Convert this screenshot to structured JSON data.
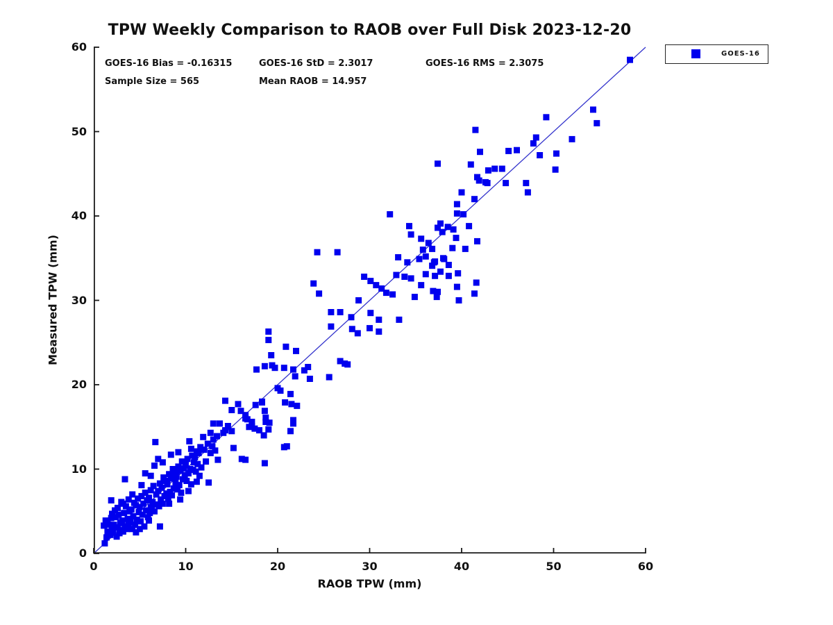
{
  "figure": {
    "title": "TPW Weekly Comparison to RAOB over Full Disk 2023-12-20",
    "stats": {
      "bias": "GOES-16 Bias = -0.16315",
      "std": "GOES-16 StD = 2.3017",
      "rms": "GOES-16 RMS = 2.3075",
      "sample_size": "Sample Size = 565",
      "mean_raob": "Mean RAOB = 14.957"
    },
    "legend": {
      "label": "GOES-16",
      "marker_color": "#0000EE"
    },
    "colors": {
      "marker": "#0000EE",
      "reference_line": "#3333CC",
      "axis": "#1a1a1a",
      "text": "#111111"
    }
  },
  "chart_data": {
    "type": "scatter",
    "title": "TPW Weekly Comparison to RAOB over Full Disk 2023-12-20",
    "xlabel": "RAOB TPW (mm)",
    "ylabel": "Measured TPW (mm)",
    "xlim": [
      0,
      60
    ],
    "ylim": [
      0,
      60
    ],
    "xticks": [
      0,
      10,
      20,
      30,
      40,
      50,
      60
    ],
    "yticks": [
      0,
      10,
      20,
      30,
      40,
      50,
      60
    ],
    "grid": false,
    "legend_position": "outside-top-right",
    "annotations": [
      "GOES-16 Bias = -0.16315",
      "GOES-16 StD = 2.3017",
      "GOES-16 RMS = 2.3075",
      "Sample Size = 565",
      "Mean RAOB = 14.957"
    ],
    "sample_size": 565,
    "reference_line": {
      "type": "identity",
      "x": [
        0,
        60
      ],
      "y": [
        0,
        60
      ],
      "color": "#3333CC"
    },
    "series": [
      {
        "name": "GOES-16",
        "marker": "filled-square",
        "marker_size_px": 9,
        "color": "#0000EE",
        "points": [
          [
            1.2,
            1.2
          ],
          [
            1.3,
            3.9
          ],
          [
            1.5,
            3.8
          ],
          [
            1.6,
            3.4
          ],
          [
            1.9,
            4.2
          ],
          [
            1.5,
            2.6
          ],
          [
            1.8,
            2.2
          ],
          [
            2.0,
            3.0
          ],
          [
            1.4,
            1.9
          ],
          [
            1.1,
            3.3
          ],
          [
            1.9,
            6.3
          ],
          [
            2.1,
            2.5
          ],
          [
            2.2,
            3.4
          ],
          [
            2.4,
            4.3
          ],
          [
            2.5,
            2.0
          ],
          [
            2.6,
            3.1
          ],
          [
            2.7,
            4.6
          ],
          [
            2.8,
            2.4
          ],
          [
            2.9,
            3.6
          ],
          [
            2.3,
            5.1
          ],
          [
            2.0,
            4.7
          ],
          [
            2.6,
            5.4
          ],
          [
            3.0,
            2.8
          ],
          [
            3.1,
            3.9
          ],
          [
            3.2,
            2.6
          ],
          [
            3.3,
            4.8
          ],
          [
            3.4,
            3.2
          ],
          [
            3.5,
            5.6
          ],
          [
            3.6,
            2.9
          ],
          [
            3.7,
            4.1
          ],
          [
            3.8,
            3.5
          ],
          [
            3.9,
            5.0
          ],
          [
            3.0,
            6.1
          ],
          [
            3.4,
            8.8
          ],
          [
            3.2,
            5.9
          ],
          [
            3.8,
            6.4
          ],
          [
            4.0,
            3.7
          ],
          [
            4.1,
            5.2
          ],
          [
            4.2,
            2.9
          ],
          [
            4.3,
            4.4
          ],
          [
            4.4,
            6.0
          ],
          [
            4.5,
            3.4
          ],
          [
            4.6,
            5.7
          ],
          [
            4.7,
            4.0
          ],
          [
            4.8,
            6.5
          ],
          [
            4.9,
            4.9
          ],
          [
            4.2,
            7.0
          ],
          [
            4.6,
            2.5
          ],
          [
            5.0,
            5.5
          ],
          [
            5.1,
            3.8
          ],
          [
            5.2,
            6.8
          ],
          [
            5.3,
            4.6
          ],
          [
            5.4,
            5.9
          ],
          [
            5.5,
            3.2
          ],
          [
            5.6,
            7.2
          ],
          [
            5.7,
            5.1
          ],
          [
            5.8,
            6.3
          ],
          [
            5.9,
            4.3
          ],
          [
            5.6,
            9.5
          ],
          [
            5.2,
            8.1
          ],
          [
            5.0,
            2.9
          ],
          [
            6.0,
            6.6
          ],
          [
            6.1,
            4.8
          ],
          [
            6.2,
            7.5
          ],
          [
            6.3,
            5.4
          ],
          [
            6.4,
            6.1
          ],
          [
            6.5,
            8.0
          ],
          [
            6.6,
            5.0
          ],
          [
            6.7,
            13.2
          ],
          [
            6.8,
            7.0
          ],
          [
            6.9,
            5.8
          ],
          [
            6.2,
            9.2
          ],
          [
            6.6,
            10.4
          ],
          [
            6.0,
            3.9
          ],
          [
            6.2,
            5.5
          ],
          [
            7.0,
            7.4
          ],
          [
            7.1,
            5.6
          ],
          [
            7.2,
            8.3
          ],
          [
            7.3,
            6.4
          ],
          [
            7.4,
            7.8
          ],
          [
            7.5,
            5.9
          ],
          [
            7.6,
            9.0
          ],
          [
            7.7,
            6.8
          ],
          [
            7.8,
            8.6
          ],
          [
            7.9,
            7.1
          ],
          [
            7.2,
            3.2
          ],
          [
            7.5,
            10.8
          ],
          [
            7.0,
            11.2
          ],
          [
            8.0,
            8.2
          ],
          [
            8.1,
            6.5
          ],
          [
            8.2,
            9.4
          ],
          [
            8.3,
            7.3
          ],
          [
            8.4,
            8.9
          ],
          [
            8.5,
            6.9
          ],
          [
            8.6,
            10.0
          ],
          [
            8.7,
            7.7
          ],
          [
            8.8,
            9.6
          ],
          [
            8.9,
            8.4
          ],
          [
            8.4,
            11.7
          ],
          [
            8.2,
            5.9
          ],
          [
            9.0,
            9.1
          ],
          [
            9.1,
            7.6
          ],
          [
            9.2,
            10.3
          ],
          [
            9.3,
            8.1
          ],
          [
            9.4,
            9.8
          ],
          [
            9.5,
            7.2
          ],
          [
            9.6,
            10.9
          ],
          [
            9.7,
            8.8
          ],
          [
            9.8,
            10.1
          ],
          [
            9.9,
            9.3
          ],
          [
            9.4,
            6.4
          ],
          [
            9.2,
            12.0
          ],
          [
            10.0,
            10.5
          ],
          [
            10.1,
            8.6
          ],
          [
            10.2,
            11.2
          ],
          [
            10.3,
            9.5
          ],
          [
            10.4,
            13.3
          ],
          [
            10.5,
            10.0
          ],
          [
            10.6,
            8.2
          ],
          [
            10.7,
            11.6
          ],
          [
            10.8,
            9.9
          ],
          [
            10.9,
            10.8
          ],
          [
            10.3,
            7.4
          ],
          [
            10.6,
            12.4
          ],
          [
            11.0,
            11.4
          ],
          [
            11.1,
            9.7
          ],
          [
            11.2,
            12.1
          ],
          [
            11.3,
            10.6
          ],
          [
            11.4,
            11.9
          ],
          [
            11.5,
            9.2
          ],
          [
            11.6,
            12.6
          ],
          [
            11.7,
            10.2
          ],
          [
            11.9,
            13.8
          ],
          [
            11.2,
            8.5
          ],
          [
            12.0,
            12.3
          ],
          [
            12.2,
            10.9
          ],
          [
            12.4,
            13.0
          ],
          [
            12.7,
            11.9
          ],
          [
            12.9,
            12.7
          ],
          [
            12.5,
            8.4
          ],
          [
            12.7,
            14.3
          ],
          [
            13.0,
            13.5
          ],
          [
            13.2,
            12.2
          ],
          [
            13.4,
            13.9
          ],
          [
            13.7,
            15.4
          ],
          [
            13.0,
            15.4
          ],
          [
            13.5,
            11.1
          ],
          [
            14.1,
            14.3
          ],
          [
            14.3,
            18.1
          ],
          [
            14.3,
            14.6
          ],
          [
            14.6,
            15.1
          ],
          [
            15.0,
            17.0
          ],
          [
            15.0,
            14.5
          ],
          [
            15.2,
            12.5
          ],
          [
            15.7,
            17.7
          ],
          [
            16.0,
            16.9
          ],
          [
            16.1,
            11.2
          ],
          [
            16.5,
            16.0
          ],
          [
            16.5,
            11.1
          ],
          [
            16.5,
            16.4
          ],
          [
            16.7,
            15.9
          ],
          [
            16.9,
            15.0
          ],
          [
            17.2,
            15.1
          ],
          [
            17.2,
            15.6
          ],
          [
            17.5,
            14.8
          ],
          [
            17.6,
            17.6
          ],
          [
            17.7,
            21.8
          ],
          [
            18.0,
            14.6
          ],
          [
            18.3,
            17.9
          ],
          [
            18.3,
            18.0
          ],
          [
            18.5,
            14.0
          ],
          [
            18.6,
            16.9
          ],
          [
            18.6,
            10.7
          ],
          [
            18.6,
            22.2
          ],
          [
            18.7,
            15.6
          ],
          [
            18.7,
            16.1
          ],
          [
            19.0,
            14.7
          ],
          [
            19.0,
            26.3
          ],
          [
            19.0,
            25.3
          ],
          [
            19.1,
            15.5
          ],
          [
            19.3,
            23.5
          ],
          [
            19.4,
            22.3
          ],
          [
            19.7,
            22.0
          ],
          [
            20.0,
            19.6
          ],
          [
            20.3,
            19.3
          ],
          [
            20.7,
            22.0
          ],
          [
            20.7,
            12.6
          ],
          [
            20.8,
            17.9
          ],
          [
            20.9,
            24.5
          ],
          [
            21.0,
            12.7
          ],
          [
            21.4,
            18.9
          ],
          [
            21.4,
            14.5
          ],
          [
            21.5,
            17.7
          ],
          [
            21.7,
            21.8
          ],
          [
            21.7,
            15.8
          ],
          [
            21.7,
            15.4
          ],
          [
            21.9,
            21.0
          ],
          [
            22.0,
            24.0
          ],
          [
            22.1,
            17.5
          ],
          [
            22.9,
            21.7
          ],
          [
            23.3,
            22.1
          ],
          [
            23.5,
            20.7
          ],
          [
            23.9,
            32.0
          ],
          [
            24.3,
            35.7
          ],
          [
            24.5,
            30.8
          ],
          [
            25.6,
            20.9
          ],
          [
            25.8,
            28.6
          ],
          [
            25.8,
            26.9
          ],
          [
            26.5,
            35.7
          ],
          [
            26.8,
            28.6
          ],
          [
            26.8,
            22.8
          ],
          [
            27.3,
            22.5
          ],
          [
            27.6,
            22.4
          ],
          [
            28.0,
            28.0
          ],
          [
            28.1,
            26.6
          ],
          [
            28.7,
            26.1
          ],
          [
            28.8,
            30.0
          ],
          [
            29.4,
            32.8
          ],
          [
            30.0,
            26.7
          ],
          [
            30.1,
            32.3
          ],
          [
            30.1,
            28.5
          ],
          [
            30.7,
            31.8
          ],
          [
            31.0,
            27.7
          ],
          [
            31.0,
            26.3
          ],
          [
            31.3,
            31.4
          ],
          [
            31.8,
            30.9
          ],
          [
            32.2,
            40.2
          ],
          [
            32.5,
            30.7
          ],
          [
            32.9,
            33.0
          ],
          [
            33.1,
            35.1
          ],
          [
            33.2,
            27.7
          ],
          [
            33.8,
            32.8
          ],
          [
            34.1,
            34.5
          ],
          [
            34.3,
            38.8
          ],
          [
            34.5,
            32.6
          ],
          [
            34.5,
            37.8
          ],
          [
            34.9,
            30.4
          ],
          [
            35.4,
            34.9
          ],
          [
            35.6,
            37.3
          ],
          [
            35.6,
            31.8
          ],
          [
            35.8,
            36.0
          ],
          [
            36.1,
            33.1
          ],
          [
            36.1,
            35.2
          ],
          [
            36.4,
            36.8
          ],
          [
            36.8,
            36.1
          ],
          [
            36.8,
            34.1
          ],
          [
            36.9,
            31.1
          ],
          [
            37.0,
            34.5
          ],
          [
            37.1,
            32.9
          ],
          [
            37.1,
            34.6
          ],
          [
            37.3,
            30.4
          ],
          [
            37.4,
            46.2
          ],
          [
            37.4,
            31.0
          ],
          [
            37.4,
            38.6
          ],
          [
            37.7,
            39.1
          ],
          [
            37.7,
            33.4
          ],
          [
            37.9,
            38.1
          ],
          [
            38.0,
            35.0
          ],
          [
            38.1,
            34.9
          ],
          [
            38.5,
            38.7
          ],
          [
            38.6,
            34.2
          ],
          [
            38.6,
            32.9
          ],
          [
            39.0,
            36.2
          ],
          [
            39.1,
            38.4
          ],
          [
            39.4,
            37.4
          ],
          [
            39.5,
            41.4
          ],
          [
            39.5,
            31.6
          ],
          [
            39.5,
            40.3
          ],
          [
            39.6,
            33.2
          ],
          [
            39.7,
            30.0
          ],
          [
            40.0,
            42.8
          ],
          [
            40.2,
            40.2
          ],
          [
            40.4,
            36.1
          ],
          [
            40.8,
            38.8
          ],
          [
            41.0,
            46.1
          ],
          [
            41.4,
            42.0
          ],
          [
            41.4,
            30.8
          ],
          [
            41.5,
            50.2
          ],
          [
            41.6,
            32.1
          ],
          [
            41.7,
            44.6
          ],
          [
            41.7,
            37.0
          ],
          [
            41.9,
            44.2
          ],
          [
            42.0,
            47.6
          ],
          [
            42.6,
            44.0
          ],
          [
            42.8,
            43.9
          ],
          [
            42.9,
            45.4
          ],
          [
            43.6,
            45.6
          ],
          [
            44.4,
            45.6
          ],
          [
            44.8,
            43.9
          ],
          [
            45.1,
            47.7
          ],
          [
            46.0,
            47.8
          ],
          [
            47.0,
            43.9
          ],
          [
            47.2,
            42.8
          ],
          [
            47.8,
            48.6
          ],
          [
            48.1,
            49.3
          ],
          [
            48.5,
            47.2
          ],
          [
            49.2,
            51.7
          ],
          [
            50.2,
            45.5
          ],
          [
            50.3,
            47.4
          ],
          [
            52.0,
            49.1
          ],
          [
            54.3,
            52.6
          ],
          [
            54.7,
            51.0
          ],
          [
            58.3,
            58.5
          ]
        ]
      }
    ]
  }
}
